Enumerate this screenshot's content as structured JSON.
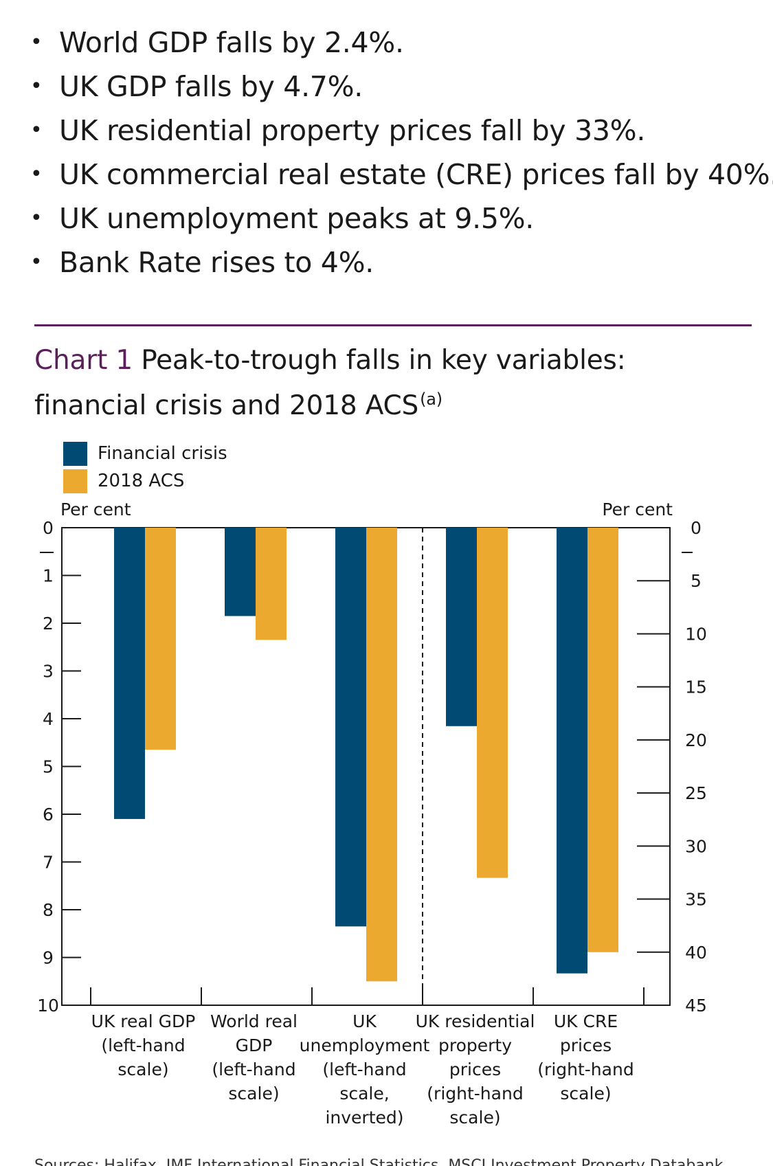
{
  "bullets": [
    "World GDP falls by 2.4%.",
    "UK GDP falls by 4.7%.",
    "UK residential property prices fall by 33%.",
    "UK commercial real estate (CRE) prices fall by 40%.",
    "UK unemployment peaks at 9.5%.",
    "Bank Rate rises to 4%."
  ],
  "chart_heading": {
    "number": "Chart 1",
    "title": "Peak-to-trough falls in key variables: financial crisis and 2018 ACS",
    "superscript": "(a)"
  },
  "footnote_partial": "Sources: Halifax, IMF International Financial Statistics, MSCI Investment Property Databank",
  "chart_data": {
    "type": "bar",
    "title": "Peak-to-trough falls in key variables: financial crisis and 2018 ACS",
    "left_axis": {
      "label": "Per cent",
      "range": [
        0,
        10
      ],
      "ticks": [
        "0",
        "1",
        "2",
        "3",
        "4",
        "5",
        "6",
        "7",
        "8",
        "9",
        "10"
      ],
      "inverted": true
    },
    "right_axis": {
      "label": "Per cent",
      "range": [
        0,
        45
      ],
      "ticks": [
        "0",
        "5",
        "10",
        "15",
        "20",
        "25",
        "30",
        "35",
        "40",
        "45"
      ],
      "inverted": true
    },
    "categories": [
      {
        "lines": [
          "UK real GDP",
          "(left-hand",
          "scale)"
        ],
        "axis": "left"
      },
      {
        "lines": [
          "World real",
          "GDP",
          "(left-hand",
          "scale)"
        ],
        "axis": "left"
      },
      {
        "lines": [
          "UK",
          "unemployment",
          "(left-hand",
          "scale,",
          "inverted)"
        ],
        "axis": "left"
      },
      {
        "lines": [
          "UK residential",
          "property",
          "prices",
          "(right-hand",
          "scale)"
        ],
        "axis": "right"
      },
      {
        "lines": [
          "UK CRE",
          "prices",
          "(right-hand",
          "scale)"
        ],
        "axis": "right"
      }
    ],
    "series": [
      {
        "name": "Financial crisis",
        "color": "#004a74",
        "values": [
          6.1,
          1.85,
          8.35,
          18.7,
          42.0
        ]
      },
      {
        "name": "2018 ACS",
        "color": "#eca92f",
        "values": [
          4.65,
          2.35,
          9.5,
          33.0,
          40.0
        ]
      }
    ],
    "divider_after_category": 2,
    "legend_position": "top-left"
  }
}
